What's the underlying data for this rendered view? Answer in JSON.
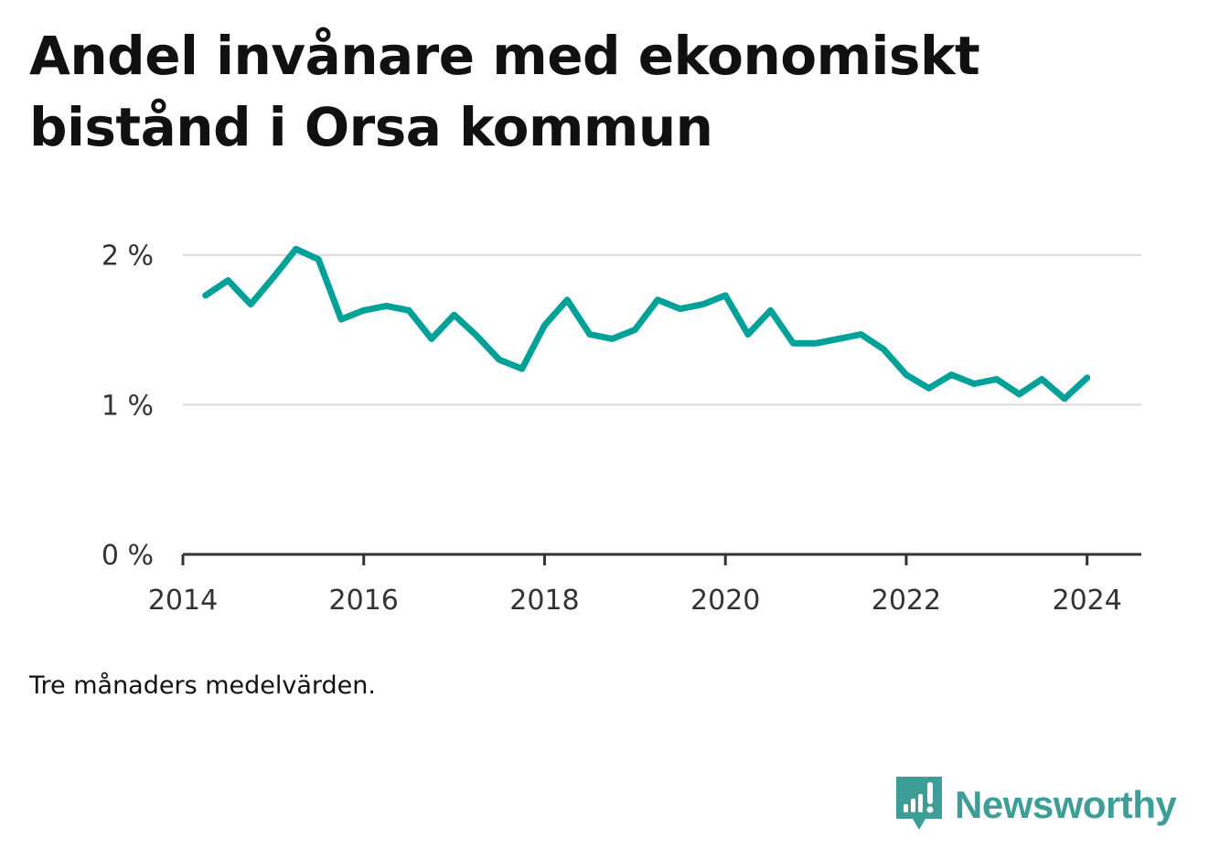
{
  "title": "Andel invånare med ekonomiskt bistånd i Orsa kommun",
  "note": "Tre månaders medelvärden.",
  "brand": {
    "name": "Newsworthy",
    "icon": "newsworthy-logo-icon",
    "color": "#3d9e97"
  },
  "colors": {
    "line": "#00a199",
    "grid": "#d9d9d9",
    "axis": "#333333"
  },
  "chart_data": {
    "type": "line",
    "title": "Andel invånare med ekonomiskt bistånd i Orsa kommun",
    "xlabel": "",
    "ylabel": "",
    "xlim": [
      2014.0,
      2024.6
    ],
    "ylim": [
      0,
      2.2
    ],
    "x_ticks": [
      2014,
      2016,
      2018,
      2020,
      2022,
      2024
    ],
    "x_tick_labels": [
      "2014",
      "2016",
      "2018",
      "2020",
      "2022",
      "2024"
    ],
    "y_ticks": [
      0,
      1,
      2
    ],
    "y_tick_labels": [
      "0 %",
      "1 %",
      "2 %"
    ],
    "grid": "horizontal",
    "series": [
      {
        "x": [
          "2014-04",
          "2014-07",
          "2014-10",
          "2015-01",
          "2015-04",
          "2015-07",
          "2015-10",
          "2016-01",
          "2016-04",
          "2016-07",
          "2016-10",
          "2017-01",
          "2017-04",
          "2017-07",
          "2017-10",
          "2018-01",
          "2018-04",
          "2018-07",
          "2018-10",
          "2019-01",
          "2019-04",
          "2019-07",
          "2019-10",
          "2020-01",
          "2020-04",
          "2020-07",
          "2020-10",
          "2021-01",
          "2021-04",
          "2021-07",
          "2021-10",
          "2022-01",
          "2022-04",
          "2022-07",
          "2022-10",
          "2023-01",
          "2023-04",
          "2023-07",
          "2023-10",
          "2024-01"
        ],
        "values": [
          1.73,
          1.83,
          1.67,
          1.85,
          2.04,
          1.97,
          1.57,
          1.63,
          1.66,
          1.63,
          1.44,
          1.6,
          1.46,
          1.3,
          1.24,
          1.53,
          1.7,
          1.47,
          1.44,
          1.5,
          1.7,
          1.64,
          1.67,
          1.73,
          1.47,
          1.63,
          1.41,
          1.41,
          1.44,
          1.47,
          1.37,
          1.2,
          1.11,
          1.2,
          1.14,
          1.17,
          1.07,
          1.17,
          1.04,
          1.18
        ]
      }
    ]
  }
}
